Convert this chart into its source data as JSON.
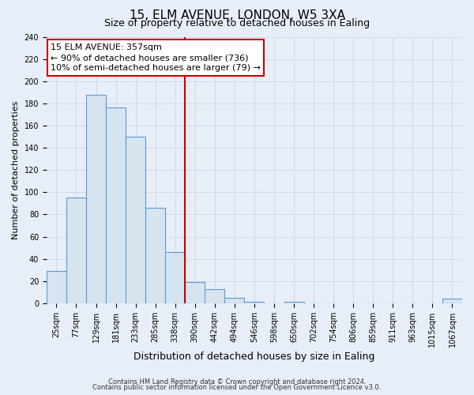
{
  "title": "15, ELM AVENUE, LONDON, W5 3XA",
  "subtitle": "Size of property relative to detached houses in Ealing",
  "xlabel": "Distribution of detached houses by size in Ealing",
  "ylabel": "Number of detached properties",
  "bin_labels": [
    "25sqm",
    "77sqm",
    "129sqm",
    "181sqm",
    "233sqm",
    "285sqm",
    "338sqm",
    "390sqm",
    "442sqm",
    "494sqm",
    "546sqm",
    "598sqm",
    "650sqm",
    "702sqm",
    "754sqm",
    "806sqm",
    "859sqm",
    "911sqm",
    "963sqm",
    "1015sqm",
    "1067sqm"
  ],
  "bar_heights": [
    29,
    95,
    188,
    176,
    150,
    86,
    46,
    19,
    13,
    5,
    1,
    0,
    1,
    0,
    0,
    0,
    0,
    0,
    0,
    0,
    4
  ],
  "bar_color_fill": "#d6e4f0",
  "bar_color_edge": "#5b9bd5",
  "vline_x": 7.0,
  "vline_color": "#cc0000",
  "annotation_line1": "15 ELM AVENUE: 357sqm",
  "annotation_line2": "← 90% of detached houses are smaller (736)",
  "annotation_line3": "10% of semi-detached houses are larger (79) →",
  "annotation_box_color": "#cc0000",
  "ylim": [
    0,
    240
  ],
  "yticks": [
    0,
    20,
    40,
    60,
    80,
    100,
    120,
    140,
    160,
    180,
    200,
    220,
    240
  ],
  "footnote1": "Contains HM Land Registry data © Crown copyright and database right 2024.",
  "footnote2": "Contains public sector information licensed under the Open Government Licence v3.0.",
  "bg_color": "#e8eef8",
  "plot_bg_color": "#e8eef8",
  "grid_color": "#c8cfe0",
  "title_fontsize": 11,
  "subtitle_fontsize": 9,
  "xlabel_fontsize": 9,
  "ylabel_fontsize": 8,
  "tick_fontsize": 7,
  "annot_fontsize": 8
}
